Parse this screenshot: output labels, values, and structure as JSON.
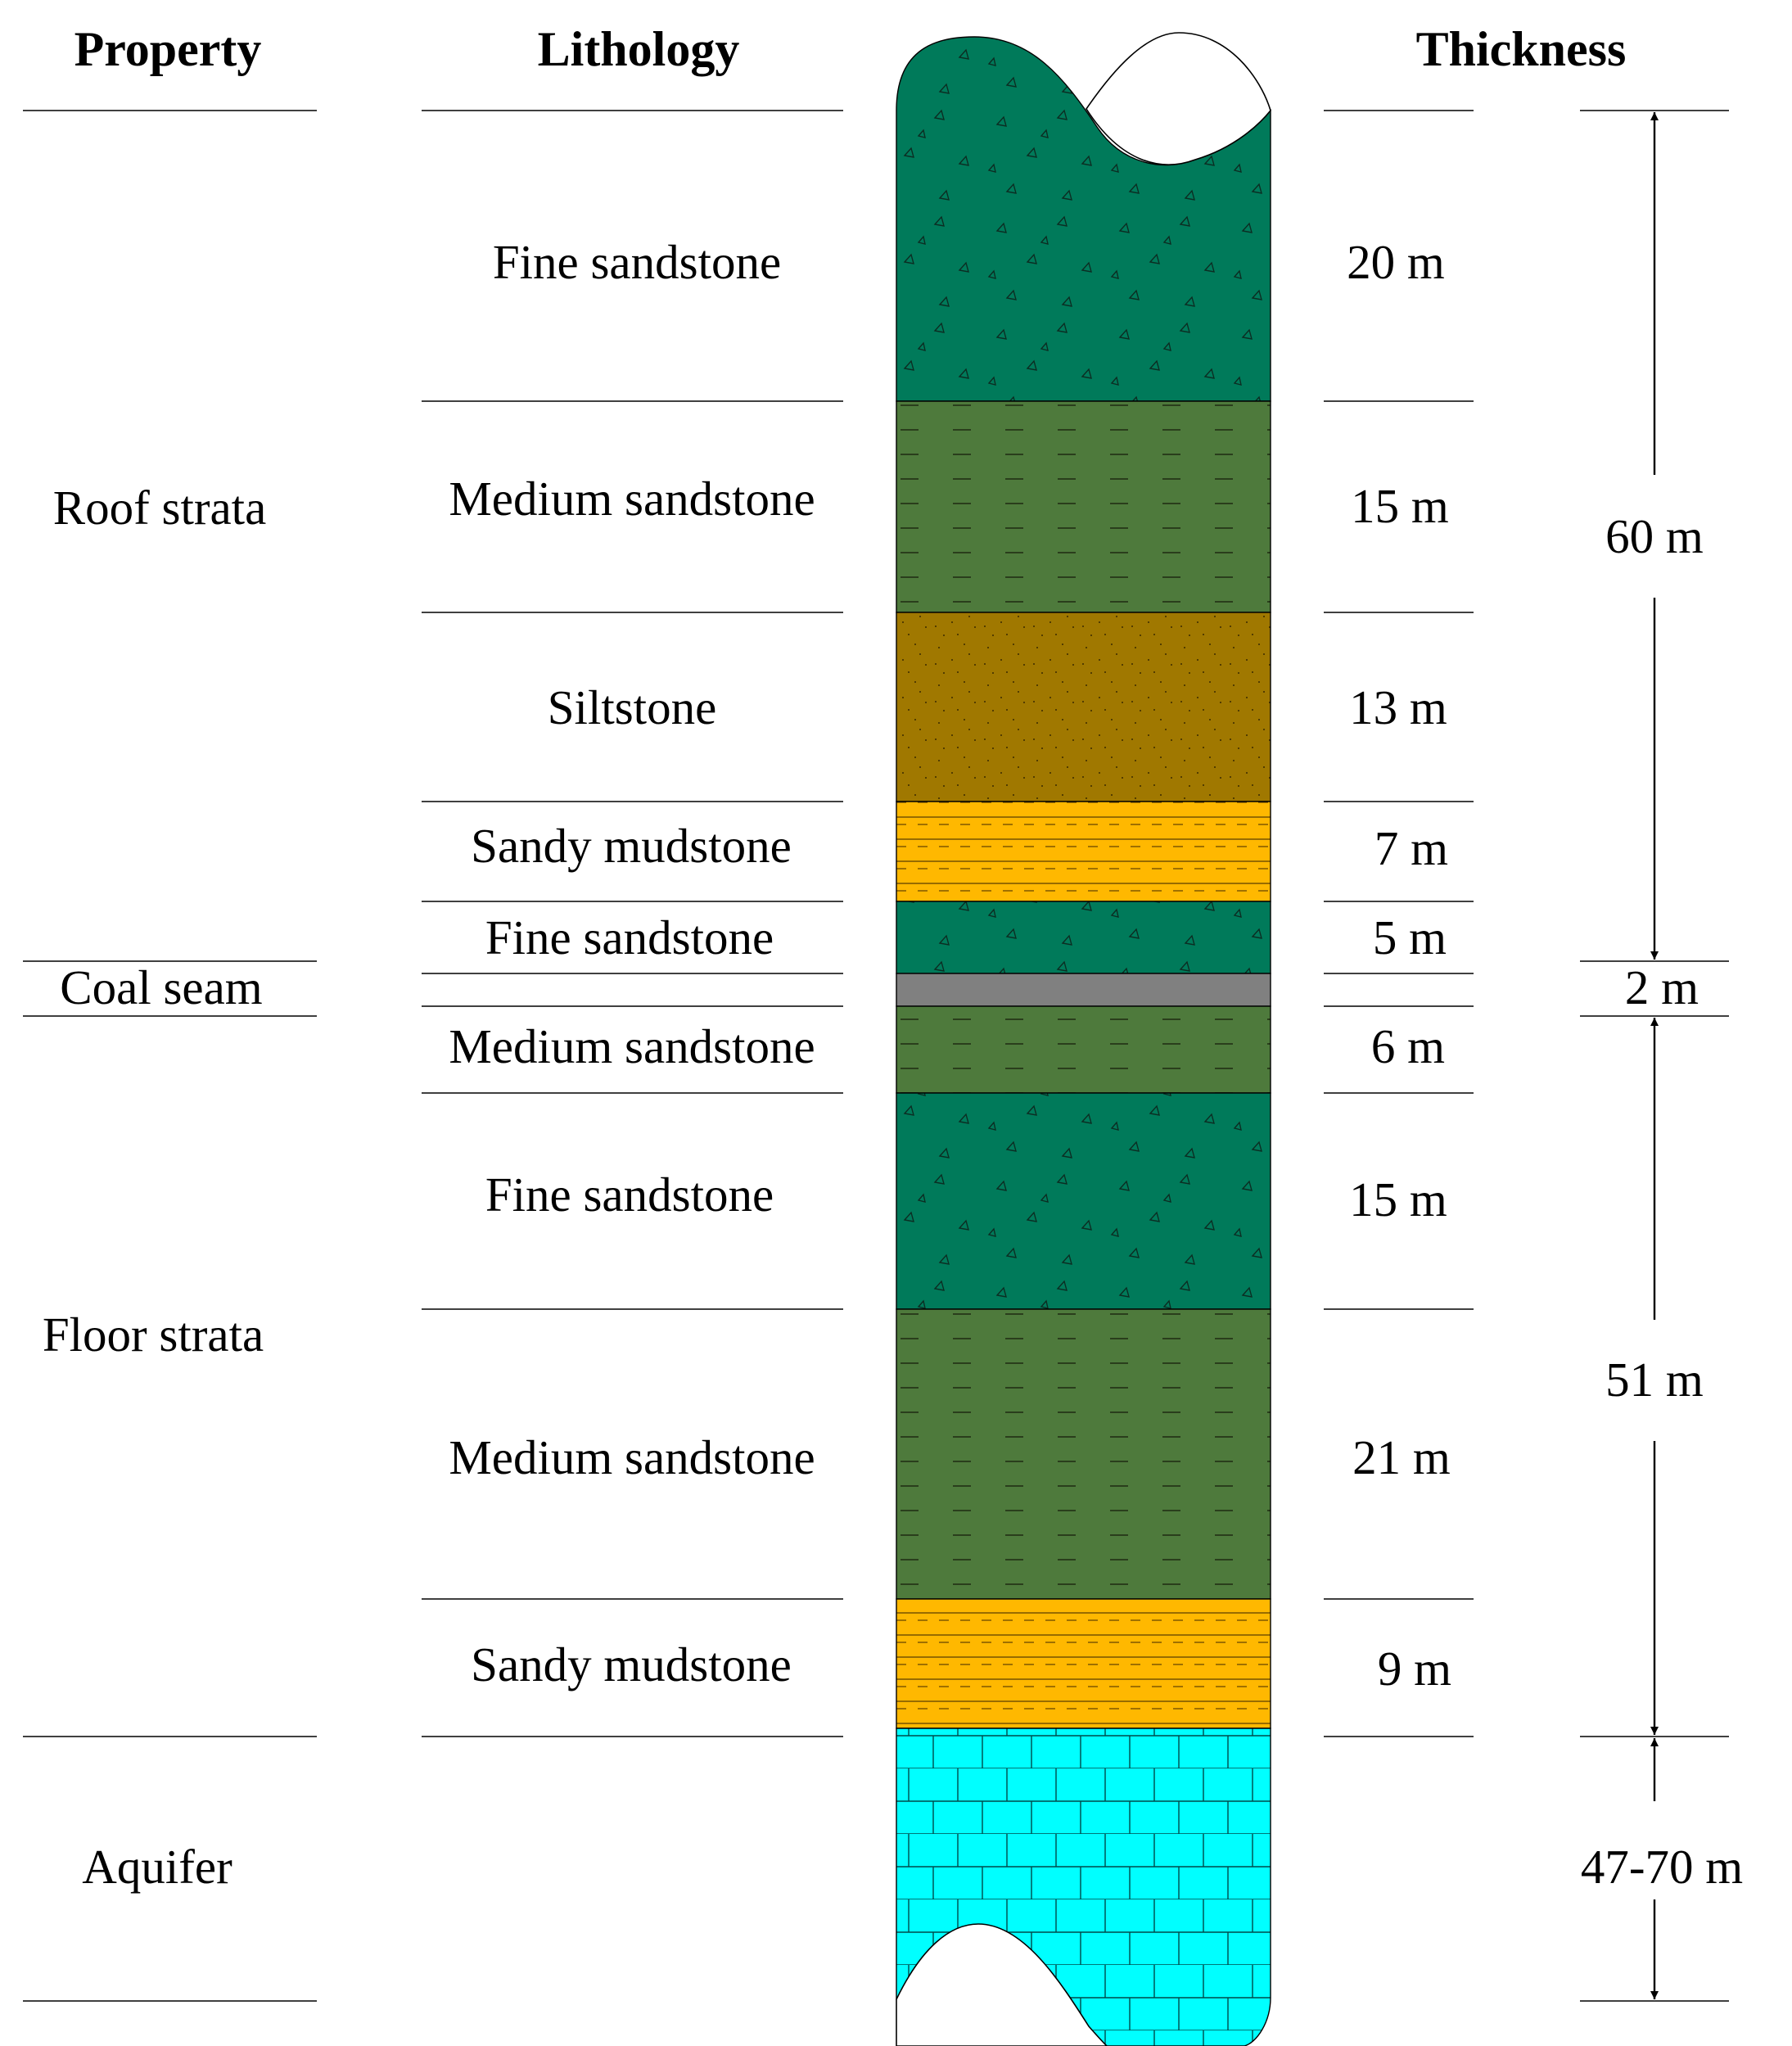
{
  "headers": {
    "property": "Property",
    "lithology": "Lithology",
    "thickness": "Thickness"
  },
  "properties": [
    {
      "label": "Roof strata"
    },
    {
      "label": "Coal seam"
    },
    {
      "label": "Floor strata"
    },
    {
      "label": "Aquifer"
    }
  ],
  "layers": [
    {
      "name": "Fine sandstone",
      "thickness": "20 m",
      "pattern": "fine-sandstone",
      "color": "#007A5A"
    },
    {
      "name": "Medium sandstone",
      "thickness": "15 m",
      "pattern": "medium-sandstone",
      "color": "#4E7A3C"
    },
    {
      "name": "Siltstone",
      "thickness": "13 m",
      "pattern": "siltstone",
      "color": "#A07800"
    },
    {
      "name": "Sandy mudstone",
      "thickness": "7 m",
      "pattern": "sandy-mudstone",
      "color": "#FFB800"
    },
    {
      "name": "Fine sandstone",
      "thickness": "5 m",
      "pattern": "fine-sandstone",
      "color": "#007A5A"
    },
    {
      "name": "",
      "thickness": "",
      "pattern": "coal",
      "color": "#808080"
    },
    {
      "name": "Medium sandstone",
      "thickness": "6 m",
      "pattern": "medium-sandstone",
      "color": "#4E7A3C"
    },
    {
      "name": "Fine sandstone",
      "thickness": "15 m",
      "pattern": "fine-sandstone",
      "color": "#007A5A"
    },
    {
      "name": "Medium sandstone",
      "thickness": "21 m",
      "pattern": "medium-sandstone",
      "color": "#4E7A3C"
    },
    {
      "name": "Sandy mudstone",
      "thickness": "9 m",
      "pattern": "sandy-mudstone",
      "color": "#FFB800"
    },
    {
      "name": "",
      "thickness": "",
      "pattern": "limestone",
      "color": "#00FFFF"
    }
  ],
  "group_thickness": [
    {
      "label": "60 m"
    },
    {
      "label": "2 m"
    },
    {
      "label": "51 m"
    },
    {
      "label": "47-70 m"
    }
  ]
}
